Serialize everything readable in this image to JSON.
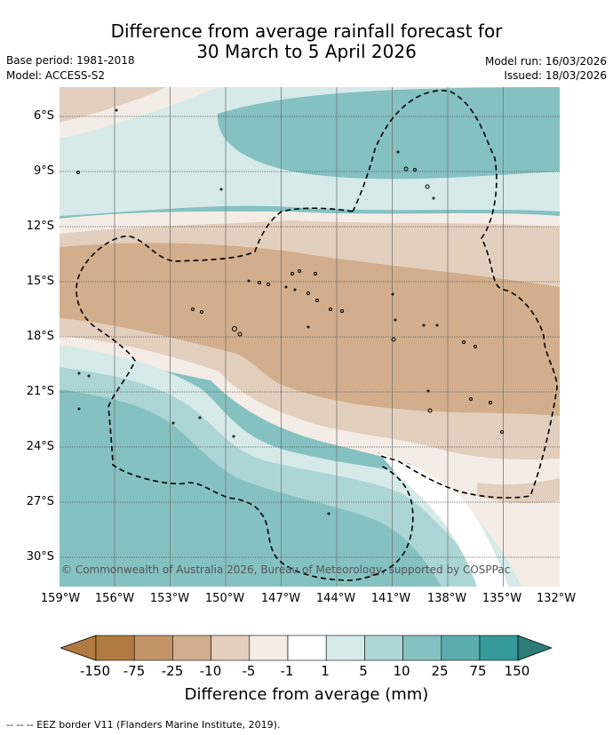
{
  "title_line1": "Difference from average rainfall forecast for",
  "title_line2": "30 March to 5 April 2026",
  "base_period": "Base period: 1981-2018",
  "model": "Model: ACCESS-S2",
  "model_run": "Model run: 16/03/2026",
  "issued": "Issued: 18/03/2026",
  "lat_labels": [
    "6°S",
    "9°S",
    "12°S",
    "15°S",
    "18°S",
    "21°S",
    "24°S",
    "27°S",
    "30°S"
  ],
  "lon_labels": [
    "159°W",
    "156°W",
    "153°W",
    "150°W",
    "147°W",
    "144°W",
    "141°W",
    "138°W",
    "135°W",
    "132°W"
  ],
  "copyright": "© Commonwealth of Australia 2026, Bureau of Meteorology, supported by COSPPac",
  "legend": {
    "title": "Difference from average (mm)",
    "ticks": [
      "-150",
      "-75",
      "-25",
      "-10",
      "-5",
      "-1",
      "1",
      "5",
      "10",
      "25",
      "75",
      "150"
    ],
    "colors": [
      "#b07a40",
      "#c29468",
      "#d2ae8c",
      "#e3cfbd",
      "#f4ece6",
      "#ffffff",
      "#d5eae9",
      "#acd6d5",
      "#85c1c1",
      "#5cadad",
      "#359b9a",
      "#2d7c79"
    ]
  },
  "eez_note": "--  --  -- EEZ border V11 (Flanders Marine Institute, 2019).",
  "colors": {
    "gridline": "#777777",
    "coastline": "#000000"
  }
}
